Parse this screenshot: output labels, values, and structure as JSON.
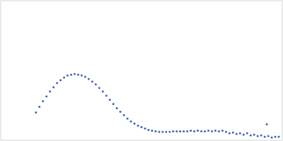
{
  "chart_data": {
    "type": "scatter",
    "x": [
      50,
      55,
      60,
      65,
      70,
      75,
      80,
      85,
      90,
      95,
      100,
      105,
      110,
      115,
      120,
      125,
      130,
      135,
      140,
      145,
      150,
      155,
      160,
      165,
      170,
      175,
      180,
      185,
      190,
      195,
      200,
      205,
      210,
      215,
      220,
      225,
      230,
      235,
      240,
      245,
      250,
      255,
      260,
      265,
      270,
      275,
      280,
      285,
      290,
      295,
      300,
      305,
      310,
      315,
      320,
      325,
      330,
      335,
      340,
      345,
      350,
      355,
      360,
      365,
      370,
      375,
      378,
      380,
      385,
      390,
      395
    ],
    "values": [
      40,
      48,
      56,
      63,
      70,
      76,
      82,
      86,
      90,
      93,
      94,
      95,
      94,
      93,
      91,
      88,
      84,
      80,
      75,
      70,
      64,
      58,
      52,
      46,
      41,
      36,
      31,
      27,
      24,
      21,
      19,
      17,
      15,
      14,
      13,
      12,
      12,
      12,
      12,
      13,
      13,
      13,
      13,
      13,
      14,
      13,
      14,
      13,
      13,
      14,
      13,
      14,
      13,
      14,
      12,
      10,
      11,
      9,
      10,
      8,
      10,
      7,
      8,
      6,
      7,
      5,
      23,
      6,
      4,
      5,
      5
    ],
    "color": "#3a66b5",
    "marker": "circle",
    "xlim": [
      0,
      400
    ],
    "ylim": [
      0,
      200
    ],
    "xticks": [
      115
    ],
    "yticks": [
      100
    ],
    "grid": true,
    "tick_labels": false
  }
}
